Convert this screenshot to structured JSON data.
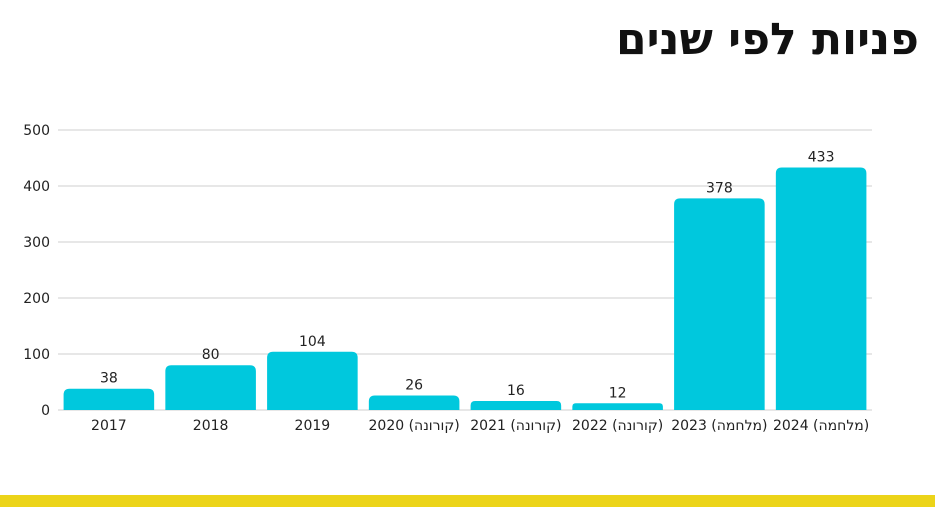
{
  "page": {
    "title": "פניות לפי שנים"
  },
  "colors": {
    "bar": "#00c8dd",
    "grid": "#cfcfcf",
    "text": "#222222",
    "accent_bar": "#ecd419"
  },
  "chart_data": {
    "type": "bar",
    "title": "פניות לפי שנים",
    "categories": [
      "2017",
      "2018",
      "2019",
      "2020 (קורונה)",
      "2021 (קורונה)",
      "2022 (קורונה)",
      "2023 (מלחמה)",
      "2024 (מלחמה)"
    ],
    "values": [
      38,
      80,
      104,
      26,
      16,
      12,
      378,
      433
    ],
    "ylim": [
      0,
      500
    ],
    "yticks": [
      0,
      100,
      200,
      300,
      400,
      500
    ],
    "grid": true,
    "legend": "none"
  }
}
